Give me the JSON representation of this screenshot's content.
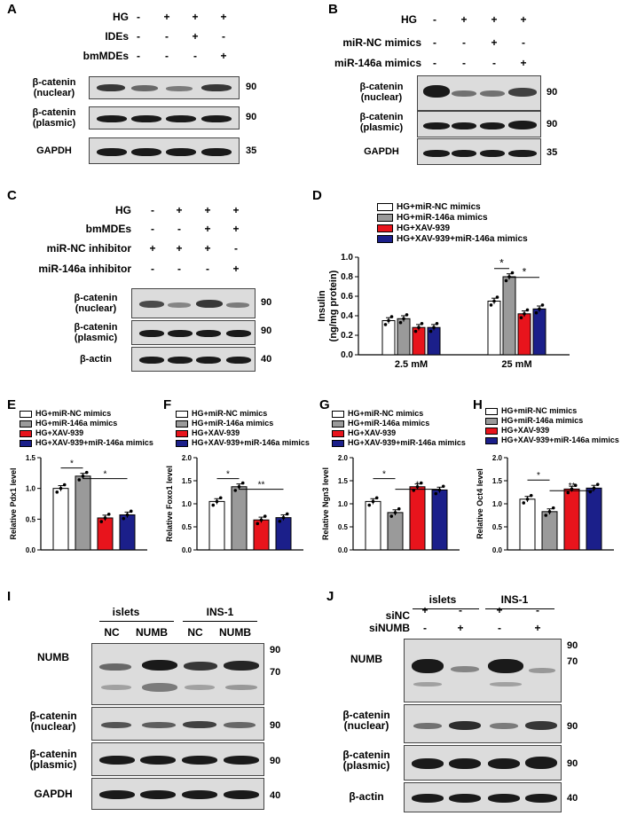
{
  "panels": {
    "A": {
      "label": "A",
      "rows": [
        {
          "name": "HG",
          "signs": [
            "-",
            "+",
            "+",
            "+"
          ]
        },
        {
          "name": "IDEs",
          "signs": [
            "-",
            "-",
            "+",
            "-"
          ]
        },
        {
          "name": "bmMDEs",
          "signs": [
            "-",
            "-",
            "-",
            "+"
          ]
        }
      ],
      "blots": [
        {
          "label": "β-catenin\n(nuclear)",
          "mw": "90"
        },
        {
          "label": "β-catenin\n(plasmic)",
          "mw": "90"
        },
        {
          "label": "GAPDH",
          "mw": "35"
        }
      ]
    },
    "B": {
      "label": "B",
      "rows": [
        {
          "name": "HG",
          "signs": [
            "-",
            "+",
            "+",
            "+"
          ]
        },
        {
          "name": "miR-NC mimics",
          "signs": [
            "-",
            "-",
            "+",
            "-"
          ]
        },
        {
          "name": "miR-146a mimics",
          "signs": [
            "-",
            "-",
            "-",
            "+"
          ]
        }
      ],
      "blots": [
        {
          "label": "β-catenin\n(nuclear)",
          "mw": "90"
        },
        {
          "label": "β-catenin\n(plasmic)",
          "mw": "90"
        },
        {
          "label": "GAPDH",
          "mw": "35"
        }
      ]
    },
    "C": {
      "label": "C",
      "rows": [
        {
          "name": "HG",
          "signs": [
            "-",
            "+",
            "+",
            "+"
          ]
        },
        {
          "name": "bmMDEs",
          "signs": [
            "-",
            "-",
            "+",
            "+"
          ]
        },
        {
          "name": "miR-NC inhibitor",
          "signs": [
            "+",
            "+",
            "+",
            "-"
          ]
        },
        {
          "name": "miR-146a inhibitor",
          "signs": [
            "-",
            "-",
            "-",
            "+"
          ]
        }
      ],
      "blots": [
        {
          "label": "β-catenin\n(nuclear)",
          "mw": "90"
        },
        {
          "label": "β-catenin\n(plasmic)",
          "mw": "90"
        },
        {
          "label": "β-actin",
          "mw": "40"
        }
      ]
    },
    "I": {
      "label": "I",
      "groups": [
        "islets",
        "INS-1"
      ],
      "lanes": [
        "NC",
        "NUMB",
        "NC",
        "NUMB"
      ],
      "blots": [
        {
          "label": "NUMB",
          "mw": "90",
          "mw2": "70"
        },
        {
          "label": "β-catenin\n(nuclear)",
          "mw": "90"
        },
        {
          "label": "β-catenin\n(plasmic)",
          "mw": "90"
        },
        {
          "label": "GAPDH",
          "mw": "40"
        }
      ]
    },
    "J": {
      "label": "J",
      "groups": [
        "islets",
        "INS-1"
      ],
      "rows": [
        {
          "name": "siNC",
          "signs": [
            "+",
            "-",
            "+",
            "-"
          ]
        },
        {
          "name": "siNUMB",
          "signs": [
            "-",
            "+",
            "-",
            "+"
          ]
        }
      ],
      "blots": [
        {
          "label": "NUMB",
          "mw": "90",
          "mw2": "70"
        },
        {
          "label": "β-catenin\n(nuclear)",
          "mw": "90"
        },
        {
          "label": "β-catenin\n(plasmic)",
          "mw": "90"
        },
        {
          "label": "β-actin",
          "mw": "40"
        }
      ]
    }
  },
  "colors": {
    "white": "#ffffff",
    "gray": "#9a9a9a",
    "red": "#e8141c",
    "navy": "#1b1f8a"
  },
  "legend": [
    "HG+miR-NC mimics",
    "HG+miR-146a mimics",
    "HG+XAV-939",
    "HG+XAV-939+miR-146a mimics"
  ],
  "chart_data": [
    {
      "panel": "D",
      "type": "bar",
      "ylabel": "Insulin\n(ng/mg protein)",
      "ylim": [
        0,
        1.0
      ],
      "yticks": [
        "0.0",
        "0.2",
        "0.4",
        "0.6",
        "0.8",
        "1.0"
      ],
      "categories": [
        "2.5 mM",
        "25 mM"
      ],
      "series": [
        {
          "name": "HG+miR-NC mimics",
          "values": [
            0.35,
            0.55
          ]
        },
        {
          "name": "HG+miR-146a mimics",
          "values": [
            0.37,
            0.8
          ]
        },
        {
          "name": "HG+XAV-939",
          "values": [
            0.28,
            0.42
          ]
        },
        {
          "name": "HG+XAV-939+miR-146a mimics",
          "values": [
            0.28,
            0.47
          ]
        }
      ],
      "sig": [
        "*",
        "*"
      ]
    },
    {
      "panel": "E",
      "type": "bar",
      "ylabel": "Relative Pdx1 level",
      "ylim": [
        0,
        1.5
      ],
      "yticks": [
        "0.0",
        "0.5",
        "1.0",
        "1.5"
      ],
      "categories": [
        ""
      ],
      "series": [
        {
          "name": "HG+miR-NC mimics",
          "values": [
            1.0
          ]
        },
        {
          "name": "HG+miR-146a mimics",
          "values": [
            1.2
          ]
        },
        {
          "name": "HG+XAV-939",
          "values": [
            0.52
          ]
        },
        {
          "name": "HG+XAV-939+miR-146a mimics",
          "values": [
            0.57
          ]
        }
      ],
      "sig": [
        "*",
        "*"
      ]
    },
    {
      "panel": "F",
      "type": "bar",
      "ylabel": "Relative Foxo1 level",
      "ylim": [
        0,
        2.0
      ],
      "yticks": [
        "0.0",
        "0.5",
        "1.0",
        "1.5",
        "2.0"
      ],
      "categories": [
        ""
      ],
      "series": [
        {
          "name": "HG+miR-NC mimics",
          "values": [
            1.05
          ]
        },
        {
          "name": "HG+miR-146a mimics",
          "values": [
            1.37
          ]
        },
        {
          "name": "HG+XAV-939",
          "values": [
            0.65
          ]
        },
        {
          "name": "HG+XAV-939+miR-146a mimics",
          "values": [
            0.7
          ]
        }
      ],
      "sig": [
        "*",
        "**"
      ]
    },
    {
      "panel": "G",
      "type": "bar",
      "ylabel": "Relative Ngn3 level",
      "ylim": [
        0,
        2.0
      ],
      "yticks": [
        "0.0",
        "0.5",
        "1.0",
        "1.5",
        "2.0"
      ],
      "categories": [
        ""
      ],
      "series": [
        {
          "name": "HG+miR-NC mimics",
          "values": [
            1.05
          ]
        },
        {
          "name": "HG+miR-146a mimics",
          "values": [
            0.81
          ]
        },
        {
          "name": "HG+XAV-939",
          "values": [
            1.37
          ]
        },
        {
          "name": "HG+XAV-939+miR-146a mimics",
          "values": [
            1.3
          ]
        }
      ],
      "sig": [
        "*",
        "*"
      ]
    },
    {
      "panel": "H",
      "type": "bar",
      "ylabel": "Relative Oct4 level",
      "ylim": [
        0,
        2.0
      ],
      "yticks": [
        "0.0",
        "0.5",
        "1.0",
        "1.5",
        "2.0"
      ],
      "categories": [
        ""
      ],
      "series": [
        {
          "name": "HG+miR-NC mimics",
          "values": [
            1.1
          ]
        },
        {
          "name": "HG+miR-146a mimics",
          "values": [
            0.83
          ]
        },
        {
          "name": "HG+XAV-939",
          "values": [
            1.32
          ]
        },
        {
          "name": "HG+XAV-939+miR-146a mimics",
          "values": [
            1.34
          ]
        }
      ],
      "sig": [
        "*",
        "**"
      ]
    }
  ]
}
